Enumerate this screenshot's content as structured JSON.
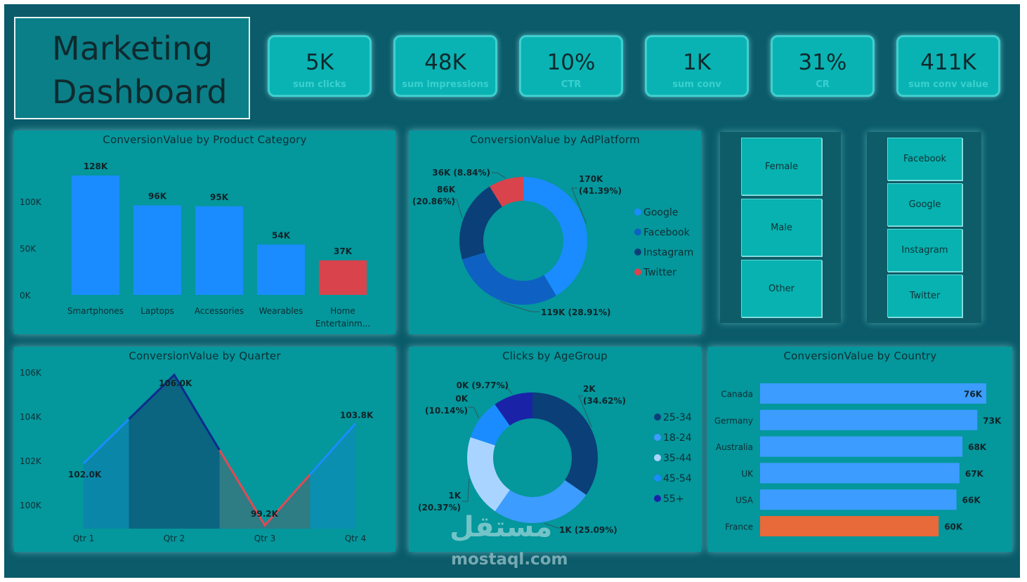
{
  "title": {
    "line1": "Marketing",
    "line2": "Dashboard"
  },
  "kpis": [
    {
      "value": "5K",
      "label": "sum clicks"
    },
    {
      "value": "48K",
      "label": "sum impressions"
    },
    {
      "value": "10%",
      "label": "CTR"
    },
    {
      "value": "1K",
      "label": "sum conv"
    },
    {
      "value": "31%",
      "label": "CR"
    },
    {
      "value": "411K",
      "label": "sum conv value"
    }
  ],
  "slicers": {
    "gender": [
      "Female",
      "Male",
      "Other"
    ],
    "platform": [
      "Facebook",
      "Google",
      "Instagram",
      "Twitter"
    ]
  },
  "watermark": {
    "arabic": "مستقل",
    "latin": "mostaql.com"
  },
  "chart_data": [
    {
      "type": "bar",
      "title": "ConversionValue by Product Category",
      "categories": [
        "Smartphones",
        "Laptops",
        "Accessories",
        "Wearables",
        "Home Entertainm..."
      ],
      "values": [
        128,
        96,
        95,
        54,
        37
      ],
      "data_labels": [
        "128K",
        "96K",
        "95K",
        "54K",
        "37K"
      ],
      "yticks": [
        "100K",
        "50K",
        "0K"
      ],
      "ylim": [
        0,
        140
      ],
      "colors": [
        "#1a8cff",
        "#1a8cff",
        "#1a8cff",
        "#1a8cff",
        "#d9434b"
      ]
    },
    {
      "type": "pie",
      "title": "ConversionValue by AdPlatform",
      "series": [
        {
          "name": "Google",
          "value": 41.39,
          "label": "170K",
          "pct": "(41.39%)",
          "color": "#1a8cff"
        },
        {
          "name": "Facebook",
          "value": 28.91,
          "label": "119K (28.91%)",
          "pct": "",
          "color": "#0e61c2"
        },
        {
          "name": "Instagram",
          "value": 20.86,
          "label": "86K",
          "pct": "(20.86%)",
          "color": "#0b3f78"
        },
        {
          "name": "Twitter",
          "value": 8.84,
          "label": "36K (8.84%)",
          "pct": "",
          "color": "#d9434b"
        }
      ]
    },
    {
      "type": "area",
      "title": "ConversionValue by Quarter",
      "categories": [
        "Qtr 1",
        "Qtr 2",
        "Qtr 3",
        "Qtr 4"
      ],
      "values": [
        102.0,
        106.0,
        99.2,
        103.8
      ],
      "data_labels": [
        "102.0K",
        "106.0K",
        "99.2K",
        "103.8K"
      ],
      "yticks": [
        "106K",
        "104K",
        "102K",
        "100K"
      ],
      "ylim": [
        99.2,
        106.0
      ]
    },
    {
      "type": "pie",
      "title": "Clicks by AgeGroup",
      "series": [
        {
          "name": "25-34",
          "value": 34.62,
          "label": "2K",
          "pct": "(34.62%)",
          "color": "#0b3f78"
        },
        {
          "name": "18-24",
          "value": 25.09,
          "label": "1K (25.09%)",
          "pct": "",
          "color": "#3d9cff"
        },
        {
          "name": "35-44",
          "value": 20.37,
          "label": "1K",
          "pct": "(20.37%)",
          "color": "#a9d4ff"
        },
        {
          "name": "45-54",
          "value": 10.14,
          "label": "0K",
          "pct": "(10.14%)",
          "color": "#1a8cff"
        },
        {
          "name": "55+",
          "value": 9.77,
          "label": "0K (9.77%)",
          "pct": "",
          "color": "#1a23a8"
        }
      ]
    },
    {
      "type": "bar",
      "title": "ConversionValue by Country",
      "orientation": "horizontal",
      "categories": [
        "Canada",
        "Germany",
        "Australia",
        "UK",
        "USA",
        "France"
      ],
      "values": [
        76,
        73,
        68,
        67,
        66,
        60
      ],
      "data_labels": [
        "76K",
        "73K",
        "68K",
        "67K",
        "66K",
        "60K"
      ],
      "colors": [
        "#3d9cff",
        "#3d9cff",
        "#3d9cff",
        "#3d9cff",
        "#3d9cff",
        "#e8693a"
      ]
    }
  ]
}
